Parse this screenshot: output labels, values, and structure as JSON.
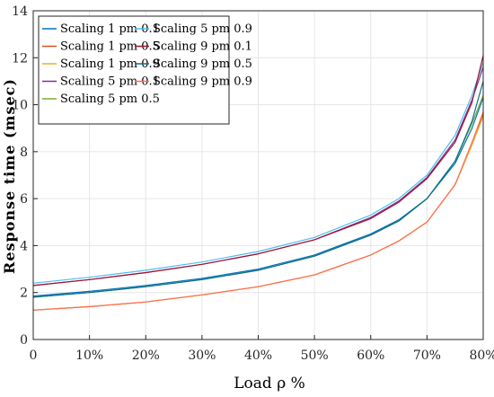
{
  "chart_data": {
    "type": "line",
    "xlabel": "Load ρ %",
    "ylabel": "Response time (msec)",
    "xlim": [
      0,
      80
    ],
    "ylim": [
      0,
      14
    ],
    "xticks": [
      0,
      10,
      20,
      30,
      40,
      50,
      60,
      70,
      80
    ],
    "xtick_labels": [
      "0",
      "10%",
      "20%",
      "30%",
      "40%",
      "50%",
      "60%",
      "70%",
      "80%"
    ],
    "yticks": [
      0,
      2,
      4,
      6,
      8,
      10,
      12,
      14
    ],
    "ytick_labels": [
      "0",
      "2",
      "4",
      "6",
      "8",
      "10",
      "12",
      "14"
    ],
    "grid": true,
    "legend_position": "top-left",
    "legend_columns": 2,
    "x": [
      0,
      10,
      20,
      30,
      40,
      50,
      60,
      65,
      70,
      75,
      78,
      80
    ],
    "series": [
      {
        "name": "Scaling 1 pm 0.1",
        "color": "#0072BD",
        "values": [
          1.85,
          2.05,
          2.3,
          2.6,
          3.0,
          3.6,
          4.5,
          5.1,
          6.0,
          7.5,
          9.0,
          10.3
        ]
      },
      {
        "name": "Scaling 1 pm 0.5",
        "color": "#D95319",
        "values": [
          1.25,
          1.4,
          1.6,
          1.9,
          2.25,
          2.75,
          3.6,
          4.2,
          5.0,
          6.6,
          8.3,
          9.6
        ]
      },
      {
        "name": "Scaling 1 pm 0.9",
        "color": "#EDB120",
        "values": [
          1.25,
          1.4,
          1.6,
          1.9,
          2.25,
          2.75,
          3.6,
          4.2,
          5.0,
          6.6,
          8.3,
          9.5
        ]
      },
      {
        "name": "Scaling 5 pm 0.1",
        "color": "#7E2F8E",
        "values": [
          2.3,
          2.55,
          2.85,
          3.2,
          3.65,
          4.25,
          5.2,
          5.9,
          6.9,
          8.5,
          10.2,
          11.6
        ]
      },
      {
        "name": "Scaling 5 pm 0.5",
        "color": "#77AC30",
        "values": [
          1.8,
          2.0,
          2.25,
          2.55,
          2.95,
          3.55,
          4.45,
          5.05,
          6.0,
          7.6,
          9.2,
          10.4
        ]
      },
      {
        "name": "Scaling 5 pm 0.9",
        "color": "#4DBEEE",
        "values": [
          2.4,
          2.65,
          2.95,
          3.3,
          3.75,
          4.35,
          5.3,
          6.0,
          7.0,
          8.7,
          10.4,
          11.8
        ]
      },
      {
        "name": "Scaling 9 pm 0.1",
        "color": "#A2142F",
        "values": [
          2.3,
          2.55,
          2.85,
          3.2,
          3.65,
          4.25,
          5.15,
          5.85,
          6.85,
          8.4,
          10.1,
          12.1
        ]
      },
      {
        "name": "Scaling 9 pm 0.5",
        "color": "#0F6E8C",
        "values": [
          1.8,
          2.0,
          2.25,
          2.55,
          2.95,
          3.55,
          4.45,
          5.05,
          6.0,
          7.6,
          9.3,
          11.0
        ]
      },
      {
        "name": "Scaling 9 pm 0.9",
        "color": "#FF6F5A",
        "values": [
          1.25,
          1.4,
          1.6,
          1.9,
          2.25,
          2.75,
          3.6,
          4.2,
          5.0,
          6.6,
          8.4,
          9.7
        ]
      }
    ]
  }
}
